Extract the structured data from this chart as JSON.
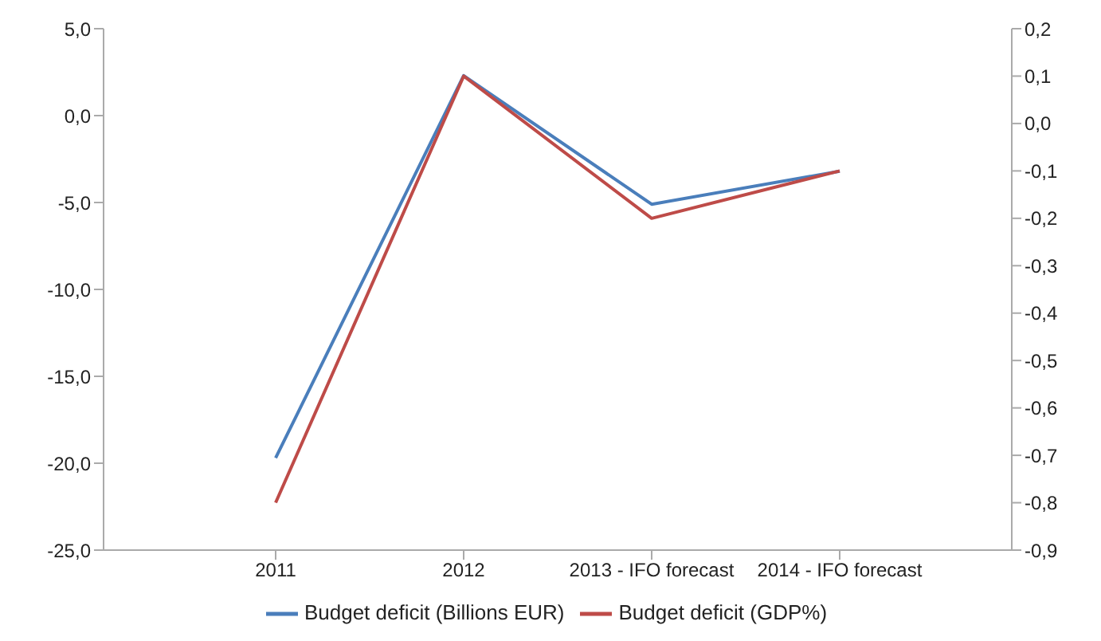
{
  "chart_data": {
    "type": "line",
    "categories": [
      "2011",
      "2012",
      "2013 - IFO forecast",
      "2014 - IFO forecast"
    ],
    "series": [
      {
        "name": "Budget deficit (Billions EUR)",
        "color": "#4a7ebb",
        "values": [
          -19.7,
          2.3,
          -5.1,
          -3.2
        ]
      },
      {
        "name": "Budget deficit (GDP%)",
        "color": "#be4b48",
        "values": [
          -0.8,
          0.1,
          -0.2,
          -0.1
        ],
        "axis": "y2"
      }
    ],
    "ylim": [
      -25,
      5
    ],
    "yticks": [
      {
        "value": -25,
        "label": "-25,0"
      },
      {
        "value": -20,
        "label": "-20,0"
      },
      {
        "value": -15,
        "label": "-15,0"
      },
      {
        "value": -10,
        "label": "-10,0"
      },
      {
        "value": -5,
        "label": "-5,0"
      },
      {
        "value": 0,
        "label": "0,0"
      },
      {
        "value": 5,
        "label": "5,0"
      }
    ],
    "y2lim": [
      -0.9,
      0.2
    ],
    "y2ticks": [
      {
        "value": -0.9,
        "label": "-0,9"
      },
      {
        "value": -0.8,
        "label": "-0,8"
      },
      {
        "value": -0.7,
        "label": "-0,7"
      },
      {
        "value": -0.6,
        "label": "-0,6"
      },
      {
        "value": -0.5,
        "label": "-0,5"
      },
      {
        "value": -0.4,
        "label": "-0,4"
      },
      {
        "value": -0.3,
        "label": "-0,3"
      },
      {
        "value": -0.2,
        "label": "-0,2"
      },
      {
        "value": -0.1,
        "label": "-0,1"
      },
      {
        "value": 0,
        "label": "0,0"
      },
      {
        "value": 0.1,
        "label": "0,1"
      },
      {
        "value": 0.2,
        "label": "0,2"
      }
    ],
    "grid": false,
    "legend": "bottom",
    "marker": "none",
    "line_style": "solid"
  }
}
